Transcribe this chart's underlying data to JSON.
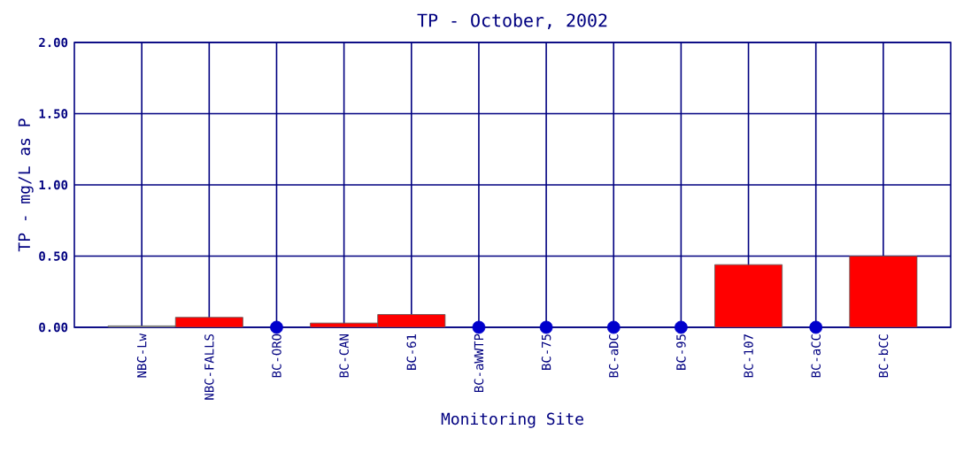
{
  "chart_data": {
    "type": "bar",
    "title": "TP - October, 2002",
    "xlabel": "Monitoring Site",
    "ylabel": "TP - mg/L as P",
    "categories": [
      "NBC-Lw",
      "NBC-FALLS",
      "BC-ORO",
      "BC-CAN",
      "BC-61",
      "BC-aWWTP",
      "BC-75",
      "BC-aDC",
      "BC-95",
      "BC-107",
      "BC-aCC",
      "BC-bCC"
    ],
    "series": [
      {
        "values": [
          0.01,
          0.07,
          null,
          0.03,
          0.09,
          null,
          null,
          null,
          null,
          0.44,
          null,
          0.5
        ],
        "colors": [
          "#a0a0a0",
          "#ff0000",
          "#ff0000",
          "#ff0000",
          "#ff0000",
          "#ff0000",
          "#ff0000",
          "#ff0000",
          "#ff0000",
          "#ff0000",
          "#ff0000",
          "#ff0000"
        ]
      },
      {
        "type": "scatter",
        "color": "#0000cc",
        "values": [
          null,
          null,
          0,
          null,
          null,
          0,
          0,
          0,
          0,
          null,
          0,
          null
        ]
      }
    ],
    "ylim": [
      0,
      2
    ],
    "yticks": [
      {
        "value": 0,
        "label": "0.00"
      },
      {
        "value": 0.5,
        "label": "0.50"
      },
      {
        "value": 1,
        "label": "1.00"
      },
      {
        "value": 1.5,
        "label": "1.50"
      },
      {
        "value": 2,
        "label": "2.00"
      }
    ],
    "grid": true,
    "marker": "circle"
  }
}
